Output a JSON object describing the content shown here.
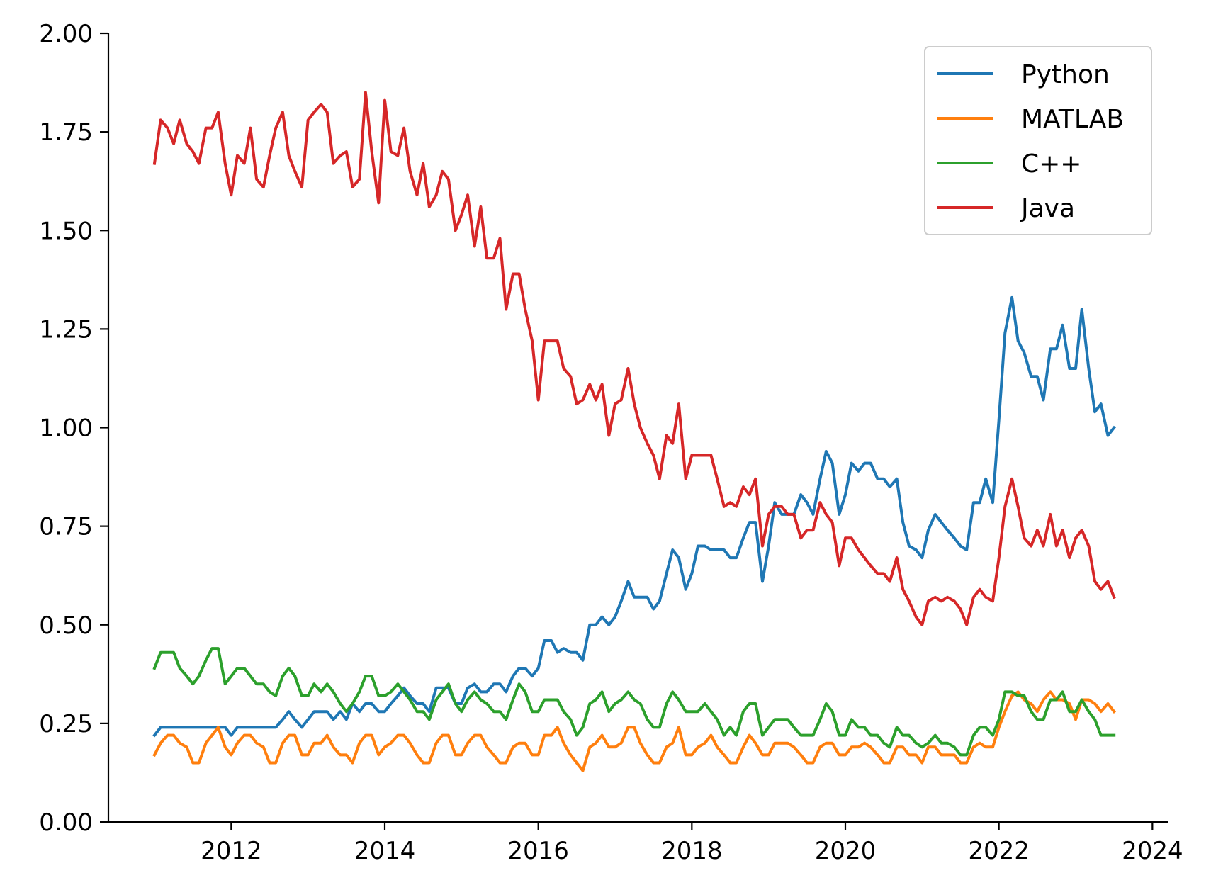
{
  "chart_data": {
    "type": "line",
    "title": "",
    "xlabel": "",
    "ylabel": "",
    "xlim": [
      2010.4,
      2024.2
    ],
    "ylim": [
      0,
      2.0
    ],
    "grid": false,
    "legend_position": "top-right",
    "x_ticks": [
      2012,
      2014,
      2016,
      2018,
      2020,
      2022,
      2024
    ],
    "x_tick_labels": [
      "2012",
      "2014",
      "2016",
      "2018",
      "2020",
      "2022",
      "2024"
    ],
    "y_ticks": [
      0,
      0.25,
      0.5,
      0.75,
      1.0,
      1.25,
      1.5,
      1.75,
      2.0
    ],
    "y_tick_labels": [
      "0.00",
      "0.25",
      "0.50",
      "0.75",
      "1.00",
      "1.25",
      "1.50",
      "1.75",
      "2.00"
    ],
    "x": [
      2011.0,
      2011.08,
      2011.17,
      2011.25,
      2011.33,
      2011.42,
      2011.5,
      2011.58,
      2011.67,
      2011.75,
      2011.83,
      2011.92,
      2012.0,
      2012.08,
      2012.17,
      2012.25,
      2012.33,
      2012.42,
      2012.5,
      2012.58,
      2012.67,
      2012.75,
      2012.83,
      2012.92,
      2013.0,
      2013.08,
      2013.17,
      2013.25,
      2013.33,
      2013.42,
      2013.5,
      2013.58,
      2013.67,
      2013.75,
      2013.83,
      2013.92,
      2014.0,
      2014.08,
      2014.17,
      2014.25,
      2014.33,
      2014.42,
      2014.5,
      2014.58,
      2014.67,
      2014.75,
      2014.83,
      2014.92,
      2015.0,
      2015.08,
      2015.17,
      2015.25,
      2015.33,
      2015.42,
      2015.5,
      2015.58,
      2015.67,
      2015.75,
      2015.83,
      2015.92,
      2016.0,
      2016.08,
      2016.17,
      2016.25,
      2016.33,
      2016.42,
      2016.5,
      2016.58,
      2016.67,
      2016.75,
      2016.83,
      2016.92,
      2017.0,
      2017.08,
      2017.17,
      2017.25,
      2017.33,
      2017.42,
      2017.5,
      2017.58,
      2017.67,
      2017.75,
      2017.83,
      2017.92,
      2018.0,
      2018.08,
      2018.17,
      2018.25,
      2018.33,
      2018.42,
      2018.5,
      2018.58,
      2018.67,
      2018.75,
      2018.83,
      2018.92,
      2019.0,
      2019.08,
      2019.17,
      2019.25,
      2019.33,
      2019.42,
      2019.5,
      2019.58,
      2019.67,
      2019.75,
      2019.83,
      2019.92,
      2020.0,
      2020.08,
      2020.17,
      2020.25,
      2020.33,
      2020.42,
      2020.5,
      2020.58,
      2020.67,
      2020.75,
      2020.83,
      2020.92,
      2021.0,
      2021.08,
      2021.17,
      2021.25,
      2021.33,
      2021.42,
      2021.5,
      2021.58,
      2021.67,
      2021.75,
      2021.83,
      2021.92,
      2022.0,
      2022.08,
      2022.17,
      2022.25,
      2022.33,
      2022.42,
      2022.5,
      2022.58,
      2022.67,
      2022.75,
      2022.83,
      2022.92,
      2023.0,
      2023.08,
      2023.17,
      2023.25,
      2023.33,
      2023.42,
      2023.5
    ],
    "series": [
      {
        "name": "Python",
        "color": "#1f77b4",
        "values": [
          0.22,
          0.24,
          0.24,
          0.24,
          0.24,
          0.24,
          0.24,
          0.24,
          0.24,
          0.24,
          0.24,
          0.24,
          0.22,
          0.24,
          0.24,
          0.24,
          0.24,
          0.24,
          0.24,
          0.24,
          0.26,
          0.28,
          0.26,
          0.24,
          0.26,
          0.28,
          0.28,
          0.28,
          0.26,
          0.28,
          0.26,
          0.3,
          0.28,
          0.3,
          0.3,
          0.28,
          0.28,
          0.3,
          0.32,
          0.34,
          0.32,
          0.3,
          0.3,
          0.28,
          0.34,
          0.34,
          0.34,
          0.3,
          0.3,
          0.34,
          0.35,
          0.33,
          0.33,
          0.35,
          0.35,
          0.33,
          0.37,
          0.39,
          0.39,
          0.37,
          0.39,
          0.46,
          0.46,
          0.43,
          0.44,
          0.43,
          0.43,
          0.41,
          0.5,
          0.5,
          0.52,
          0.5,
          0.52,
          0.56,
          0.61,
          0.57,
          0.57,
          0.57,
          0.54,
          0.56,
          0.63,
          0.69,
          0.67,
          0.59,
          0.63,
          0.7,
          0.7,
          0.69,
          0.69,
          0.69,
          0.67,
          0.67,
          0.72,
          0.76,
          0.76,
          0.61,
          0.7,
          0.81,
          0.78,
          0.78,
          0.78,
          0.83,
          0.81,
          0.78,
          0.87,
          0.94,
          0.91,
          0.78,
          0.83,
          0.91,
          0.89,
          0.91,
          0.91,
          0.87,
          0.87,
          0.85,
          0.87,
          0.76,
          0.7,
          0.69,
          0.67,
          0.74,
          0.78,
          0.76,
          0.74,
          0.72,
          0.7,
          0.69,
          0.81,
          0.81,
          0.87,
          0.81,
          1.02,
          1.24,
          1.33,
          1.22,
          1.19,
          1.13,
          1.13,
          1.07,
          1.2,
          1.2,
          1.26,
          1.15,
          1.15,
          1.3,
          1.15,
          1.04,
          1.06,
          0.98,
          1.0
        ]
      },
      {
        "name": "MATLAB",
        "color": "#ff7f0e",
        "values": [
          0.17,
          0.2,
          0.22,
          0.22,
          0.2,
          0.19,
          0.15,
          0.15,
          0.2,
          0.22,
          0.24,
          0.19,
          0.17,
          0.2,
          0.22,
          0.22,
          0.2,
          0.19,
          0.15,
          0.15,
          0.2,
          0.22,
          0.22,
          0.17,
          0.17,
          0.2,
          0.2,
          0.22,
          0.19,
          0.17,
          0.17,
          0.15,
          0.2,
          0.22,
          0.22,
          0.17,
          0.19,
          0.2,
          0.22,
          0.22,
          0.2,
          0.17,
          0.15,
          0.15,
          0.2,
          0.22,
          0.22,
          0.17,
          0.17,
          0.2,
          0.22,
          0.22,
          0.19,
          0.17,
          0.15,
          0.15,
          0.19,
          0.2,
          0.2,
          0.17,
          0.17,
          0.22,
          0.22,
          0.24,
          0.2,
          0.17,
          0.15,
          0.13,
          0.19,
          0.2,
          0.22,
          0.19,
          0.19,
          0.2,
          0.24,
          0.24,
          0.2,
          0.17,
          0.15,
          0.15,
          0.19,
          0.2,
          0.24,
          0.17,
          0.17,
          0.19,
          0.2,
          0.22,
          0.19,
          0.17,
          0.15,
          0.15,
          0.19,
          0.22,
          0.2,
          0.17,
          0.17,
          0.2,
          0.2,
          0.2,
          0.19,
          0.17,
          0.15,
          0.15,
          0.19,
          0.2,
          0.2,
          0.17,
          0.17,
          0.19,
          0.19,
          0.2,
          0.19,
          0.17,
          0.15,
          0.15,
          0.19,
          0.19,
          0.17,
          0.17,
          0.15,
          0.19,
          0.19,
          0.17,
          0.17,
          0.17,
          0.15,
          0.15,
          0.19,
          0.2,
          0.19,
          0.19,
          0.24,
          0.28,
          0.32,
          0.33,
          0.31,
          0.3,
          0.28,
          0.31,
          0.33,
          0.31,
          0.31,
          0.3,
          0.26,
          0.31,
          0.31,
          0.3,
          0.28,
          0.3,
          0.28
        ]
      },
      {
        "name": "C++",
        "color": "#2ca02c",
        "values": [
          0.39,
          0.43,
          0.43,
          0.43,
          0.39,
          0.37,
          0.35,
          0.37,
          0.41,
          0.44,
          0.44,
          0.35,
          0.37,
          0.39,
          0.39,
          0.37,
          0.35,
          0.35,
          0.33,
          0.32,
          0.37,
          0.39,
          0.37,
          0.32,
          0.32,
          0.35,
          0.33,
          0.35,
          0.33,
          0.3,
          0.28,
          0.3,
          0.33,
          0.37,
          0.37,
          0.32,
          0.32,
          0.33,
          0.35,
          0.33,
          0.31,
          0.28,
          0.28,
          0.26,
          0.31,
          0.33,
          0.35,
          0.3,
          0.28,
          0.31,
          0.33,
          0.31,
          0.3,
          0.28,
          0.28,
          0.26,
          0.31,
          0.35,
          0.33,
          0.28,
          0.28,
          0.31,
          0.31,
          0.31,
          0.28,
          0.26,
          0.22,
          0.24,
          0.3,
          0.31,
          0.33,
          0.28,
          0.3,
          0.31,
          0.33,
          0.31,
          0.3,
          0.26,
          0.24,
          0.24,
          0.3,
          0.33,
          0.31,
          0.28,
          0.28,
          0.28,
          0.3,
          0.28,
          0.26,
          0.22,
          0.24,
          0.22,
          0.28,
          0.3,
          0.3,
          0.22,
          0.24,
          0.26,
          0.26,
          0.26,
          0.24,
          0.22,
          0.22,
          0.22,
          0.26,
          0.3,
          0.28,
          0.22,
          0.22,
          0.26,
          0.24,
          0.24,
          0.22,
          0.22,
          0.2,
          0.19,
          0.24,
          0.22,
          0.22,
          0.2,
          0.19,
          0.2,
          0.22,
          0.2,
          0.2,
          0.19,
          0.17,
          0.17,
          0.22,
          0.24,
          0.24,
          0.22,
          0.26,
          0.33,
          0.33,
          0.32,
          0.32,
          0.28,
          0.26,
          0.26,
          0.31,
          0.31,
          0.33,
          0.28,
          0.28,
          0.31,
          0.28,
          0.26,
          0.22,
          0.22,
          0.22
        ]
      },
      {
        "name": "Java",
        "color": "#d62728",
        "values": [
          1.67,
          1.78,
          1.76,
          1.72,
          1.78,
          1.72,
          1.7,
          1.67,
          1.76,
          1.76,
          1.8,
          1.67,
          1.59,
          1.69,
          1.67,
          1.76,
          1.63,
          1.61,
          1.69,
          1.76,
          1.8,
          1.69,
          1.65,
          1.61,
          1.78,
          1.8,
          1.82,
          1.8,
          1.67,
          1.69,
          1.7,
          1.61,
          1.63,
          1.85,
          1.7,
          1.57,
          1.83,
          1.7,
          1.69,
          1.76,
          1.65,
          1.59,
          1.67,
          1.56,
          1.59,
          1.65,
          1.63,
          1.5,
          1.54,
          1.59,
          1.46,
          1.56,
          1.43,
          1.43,
          1.48,
          1.3,
          1.39,
          1.39,
          1.3,
          1.22,
          1.07,
          1.22,
          1.22,
          1.22,
          1.15,
          1.13,
          1.06,
          1.07,
          1.11,
          1.07,
          1.11,
          0.98,
          1.06,
          1.07,
          1.15,
          1.06,
          1.0,
          0.96,
          0.93,
          0.87,
          0.98,
          0.96,
          1.06,
          0.87,
          0.93,
          0.93,
          0.93,
          0.93,
          0.87,
          0.8,
          0.81,
          0.8,
          0.85,
          0.83,
          0.87,
          0.7,
          0.78,
          0.8,
          0.8,
          0.78,
          0.78,
          0.72,
          0.74,
          0.74,
          0.81,
          0.78,
          0.76,
          0.65,
          0.72,
          0.72,
          0.69,
          0.67,
          0.65,
          0.63,
          0.63,
          0.61,
          0.67,
          0.59,
          0.56,
          0.52,
          0.5,
          0.56,
          0.57,
          0.56,
          0.57,
          0.56,
          0.54,
          0.5,
          0.57,
          0.59,
          0.57,
          0.56,
          0.67,
          0.8,
          0.87,
          0.8,
          0.72,
          0.7,
          0.74,
          0.7,
          0.78,
          0.7,
          0.74,
          0.67,
          0.72,
          0.74,
          0.7,
          0.61,
          0.59,
          0.61,
          0.57
        ]
      }
    ]
  }
}
